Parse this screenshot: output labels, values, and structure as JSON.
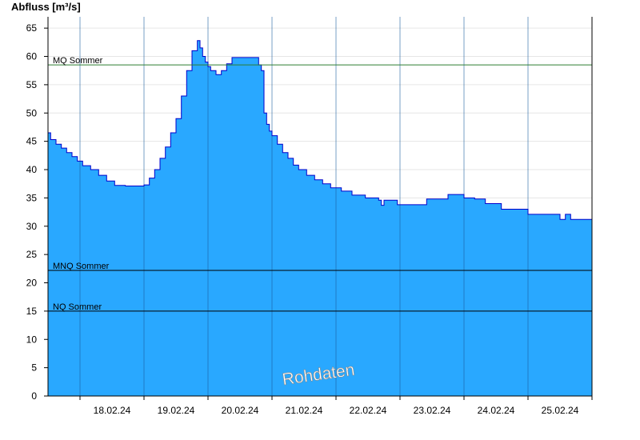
{
  "chart_data": {
    "type": "area",
    "title": "Abfluss [m³/s]",
    "ylabel": "Abfluss [m³/s]",
    "xlabel": "",
    "ylim": [
      0,
      67
    ],
    "yticks": [
      0,
      5,
      10,
      15,
      20,
      25,
      30,
      35,
      40,
      45,
      50,
      55,
      60,
      65
    ],
    "x_start": "17.02.24 12:00",
    "x_end": "25.02.24 24:00",
    "x_tick_labels": [
      "18.02.24",
      "19.02.24",
      "20.02.24",
      "21.02.24",
      "22.02.24",
      "23.02.24",
      "24.02.24",
      "25.02.24"
    ],
    "grid": true,
    "watermark": "Rohdaten",
    "fill_color": "#29a8ff",
    "line_color": "#0000cc",
    "reference_lines": [
      {
        "label": "MQ Sommer",
        "value": 58.5,
        "color": "#2e7d32"
      },
      {
        "label": "MNQ Sommer",
        "value": 22.2,
        "color": "#000000"
      },
      {
        "label": "NQ Sommer",
        "value": 15.0,
        "color": "#000000"
      }
    ],
    "series": [
      {
        "x": [
          "17.02.24 12:00",
          "17.02.24 13:00",
          "17.02.24 15:00",
          "17.02.24 17:00",
          "17.02.24 19:00",
          "17.02.24 21:00",
          "17.02.24 23:00",
          "18.02.24 01:00",
          "18.02.24 04:00",
          "18.02.24 07:00",
          "18.02.24 10:00",
          "18.02.24 13:00",
          "18.02.24 17:00",
          "18.02.24 21:00",
          "19.02.24 00:00",
          "19.02.24 02:00",
          "19.02.24 04:00",
          "19.02.24 06:00",
          "19.02.24 08:00",
          "19.02.24 10:00",
          "19.02.24 12:00",
          "19.02.24 14:00",
          "19.02.24 16:00",
          "19.02.24 18:00",
          "19.02.24 20:00",
          "19.02.24 21:00",
          "19.02.24 22:00",
          "19.02.24 23:00",
          "20.02.24 00:00",
          "20.02.24 01:00",
          "20.02.24 03:00",
          "20.02.24 05:00",
          "20.02.24 07:00",
          "20.02.24 09:00",
          "20.02.24 11:00",
          "20.02.24 13:00",
          "20.02.24 15:00",
          "20.02.24 17:00",
          "20.02.24 19:00",
          "20.02.24 20:00",
          "20.02.24 21:00",
          "20.02.24 22:00",
          "20.02.24 23:00",
          "21.02.24 00:00",
          "21.02.24 02:00",
          "21.02.24 04:00",
          "21.02.24 06:00",
          "21.02.24 08:00",
          "21.02.24 10:00",
          "21.02.24 13:00",
          "21.02.24 16:00",
          "21.02.24 19:00",
          "21.02.24 22:00",
          "22.02.24 02:00",
          "22.02.24 06:00",
          "22.02.24 11:00",
          "22.02.24 16:00",
          "22.02.24 17:00",
          "22.02.24 18:00",
          "22.02.24 23:00",
          "23.02.24 04:00",
          "23.02.24 10:00",
          "23.02.24 18:00",
          "24.02.24 00:00",
          "24.02.24 04:00",
          "24.02.24 08:00",
          "24.02.24 14:00",
          "25.02.24 00:00",
          "25.02.24 08:00",
          "25.02.24 10:00",
          "25.02.24 12:00",
          "25.02.24 14:00",
          "25.02.24 16:00",
          "25.02.24 24:00"
        ],
        "values": [
          46.5,
          45.3,
          44.5,
          43.8,
          43.0,
          42.3,
          41.5,
          40.7,
          40.0,
          39.0,
          38.0,
          37.2,
          37.1,
          37.1,
          37.3,
          38.5,
          40.0,
          42.0,
          44.0,
          46.5,
          49.0,
          53.0,
          57.5,
          61.0,
          62.8,
          61.5,
          60.0,
          59.0,
          58.2,
          57.5,
          56.8,
          57.5,
          58.7,
          59.8,
          59.8,
          59.8,
          59.8,
          59.8,
          58.5,
          57.5,
          50.0,
          48.0,
          46.8,
          46.0,
          44.5,
          43.0,
          42.0,
          40.8,
          40.0,
          39.0,
          38.2,
          37.5,
          36.8,
          36.2,
          35.5,
          35.0,
          34.6,
          33.7,
          34.6,
          33.8,
          33.8,
          34.8,
          35.6,
          35.0,
          34.8,
          34.0,
          33.0,
          32.1,
          32.1,
          32.1,
          31.2,
          32.1,
          31.2,
          31.2
        ]
      }
    ]
  }
}
